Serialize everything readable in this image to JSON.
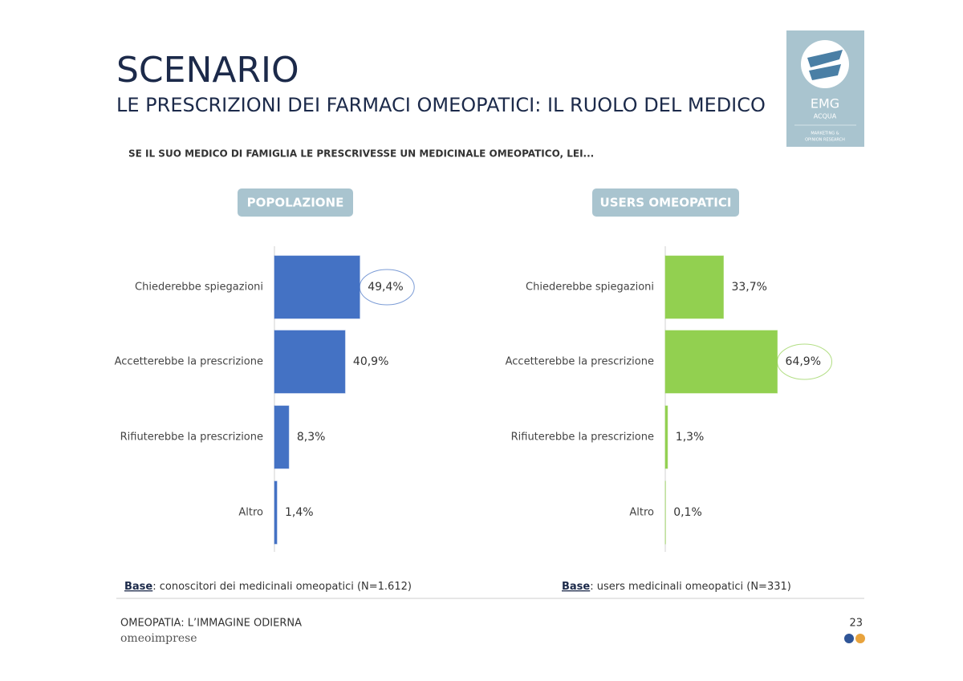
{
  "header": {
    "title": "SCENARIO",
    "subtitle": "LE PRESCRIZIONI DEI FARMACI OMEOPATICI: IL RUOLO DEL MEDICO",
    "question": "SE IL SUO MEDICO DI FAMIGLIA LE PRESCRIVESSE UN MEDICINALE OMEOPATICO, LEI..."
  },
  "logo": {
    "name": "EMG",
    "sub": "ACQUA",
    "tagline1": "MARKETING &",
    "tagline2": "OPINION RESEARCH"
  },
  "chart_data": [
    {
      "type": "bar",
      "orientation": "horizontal",
      "title": "POPOLAZIONE",
      "categories": [
        "Chiederebbe spiegazioni",
        "Accetterebbe la prescrizione",
        "Rifiuterebbe la prescrizione",
        "Altro"
      ],
      "values": [
        49.4,
        40.9,
        8.3,
        1.4
      ],
      "value_labels": [
        "49,4%",
        "40,9%",
        "8,3%",
        "1,4%"
      ],
      "color": "#4472c4",
      "highlight": 0,
      "note": {
        "label": "Base",
        "text": ": conoscitori dei medicinali omeopatici (N=1.612)"
      }
    },
    {
      "type": "bar",
      "orientation": "horizontal",
      "title": "USERS OMEOPATICI",
      "categories": [
        "Chiederebbe spiegazioni",
        "Accetterebbe la prescrizione",
        "Rifiuterebbe la prescrizione",
        "Altro"
      ],
      "values": [
        33.7,
        64.9,
        1.3,
        0.1
      ],
      "value_labels": [
        "33,7%",
        "64,9%",
        "1,3%",
        "0,1%"
      ],
      "color": "#92d050",
      "highlight": 1,
      "note": {
        "label": "Base",
        "text": ": users medicinali omeopatici (N=331)"
      }
    }
  ],
  "footer": {
    "title": "OMEOPATIA: L’IMMAGINE ODIERNA",
    "brand": "omeoimprese",
    "page": "23"
  }
}
